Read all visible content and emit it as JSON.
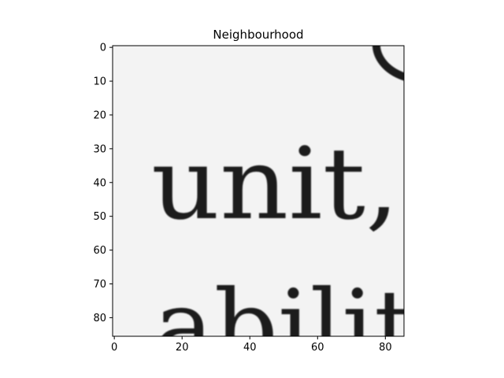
{
  "chart_data": {
    "type": "heatmap",
    "title": "Neighbourhood",
    "colormap": "gray",
    "xlabel": "",
    "ylabel": "",
    "xlim": [
      -0.5,
      85.5
    ],
    "ylim": [
      85.5,
      -0.5
    ],
    "xticks": [
      0,
      20,
      40,
      60,
      80
    ],
    "yticks": [
      0,
      10,
      20,
      30,
      40,
      50,
      60,
      70,
      80
    ],
    "image_text": [
      "unit,",
      "abilit"
    ],
    "background_color": "#f3f3f3",
    "ink_color": "#1c1c1c"
  }
}
